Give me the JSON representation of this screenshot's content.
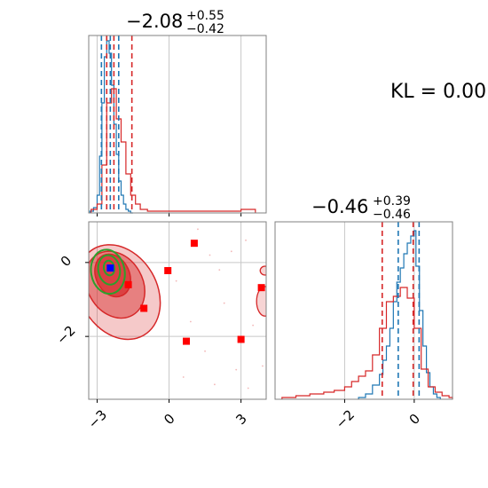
{
  "kl_label": "KL = 0.00",
  "colors": {
    "red": "#d62728",
    "blue": "#1f77b4",
    "green": "#2ca02c",
    "marker_red": "#ff0000",
    "marker_blue": "#0000ff",
    "grid": "#c8c8c8",
    "frame": "#808080"
  },
  "chart_data": [
    {
      "type": "histogram",
      "panel": "top-left",
      "title": {
        "value": "−2.08",
        "upper": "+0.55",
        "lower": "−0.42"
      },
      "xlim": [
        -3.35,
        4.05
      ],
      "grid": true,
      "vlines": {
        "red": [
          -2.6,
          -2.3,
          -1.55
        ],
        "blue": [
          -2.82,
          -2.45,
          -2.1
        ]
      },
      "series": [
        {
          "color": "blue",
          "bins": [
            [
              -3.3,
              0.01
            ],
            [
              -3.15,
              0.03
            ],
            [
              -3.0,
              0.1
            ],
            [
              -2.9,
              0.32
            ],
            [
              -2.8,
              0.62
            ],
            [
              -2.7,
              0.88
            ],
            [
              -2.6,
              0.97
            ],
            [
              -2.5,
              0.9
            ],
            [
              -2.4,
              0.72
            ],
            [
              -2.3,
              0.5
            ],
            [
              -2.2,
              0.33
            ],
            [
              -2.1,
              0.18
            ],
            [
              -2.0,
              0.1
            ],
            [
              -1.9,
              0.05
            ],
            [
              -1.8,
              0.02
            ],
            [
              -1.7,
              0.01
            ],
            [
              -1.6,
              0.0
            ]
          ]
        },
        {
          "color": "red",
          "bins": [
            [
              -3.25,
              0.02
            ],
            [
              -3.0,
              0.05
            ],
            [
              -2.8,
              0.27
            ],
            [
              -2.6,
              0.62
            ],
            [
              -2.4,
              0.7
            ],
            [
              -2.2,
              0.53
            ],
            [
              -2.0,
              0.4
            ],
            [
              -1.8,
              0.22
            ],
            [
              -1.6,
              0.1
            ],
            [
              -1.4,
              0.05
            ],
            [
              -1.2,
              0.02
            ],
            [
              -0.9,
              0.01
            ],
            [
              -0.3,
              0.01
            ],
            [
              0.5,
              0.01
            ],
            [
              1.5,
              0.01
            ],
            [
              2.5,
              0.01
            ],
            [
              3.0,
              0.02
            ],
            [
              3.5,
              0.02
            ]
          ]
        }
      ],
      "xticks": [
        -3,
        0,
        3
      ]
    },
    {
      "type": "scatter_contour",
      "panel": "bottom-left",
      "xlim": [
        -3.35,
        4.05
      ],
      "ylim": [
        -3.7,
        1.1
      ],
      "grid": true,
      "xticks": [
        -3,
        0,
        3
      ],
      "yticks": [
        0,
        -2
      ],
      "xtick_labels": [
        "−3",
        "0",
        "3"
      ],
      "ytick_labels": [
        "0",
        "−2"
      ],
      "square_markers_red": [
        [
          1.05,
          0.52
        ],
        [
          -0.05,
          -0.22
        ],
        [
          -1.05,
          -1.24
        ],
        [
          0.72,
          -2.13
        ],
        [
          3.0,
          -2.08
        ],
        [
          3.85,
          -0.68
        ],
        [
          -1.7,
          -0.6
        ]
      ],
      "square_markers_blue": [
        [
          -2.45,
          -0.15
        ]
      ],
      "red_contours": [
        {
          "center": [
            -2.1,
            -0.8
          ],
          "rx": 1.6,
          "ry": 1.35,
          "rotate": -30,
          "alpha": 0.25
        },
        {
          "center": [
            -2.25,
            -0.6
          ],
          "rx": 1.15,
          "ry": 0.95,
          "rotate": -30,
          "alpha": 0.45
        },
        {
          "center": [
            -2.35,
            -0.35
          ],
          "rx": 0.7,
          "ry": 0.6,
          "rotate": -25,
          "alpha": 0.7
        }
      ],
      "green_contours": [
        {
          "center": [
            -2.55,
            -0.25
          ],
          "rx": 0.7,
          "ry": 0.6,
          "rotate": -10
        },
        {
          "center": [
            -2.5,
            -0.2
          ],
          "rx": 0.45,
          "ry": 0.4,
          "rotate": -10
        },
        {
          "center": [
            -2.5,
            -0.15
          ],
          "rx": 0.22,
          "ry": 0.2,
          "rotate": -10
        }
      ],
      "red_islands": [
        {
          "center": [
            4.0,
            -0.22
          ],
          "rx": 0.2,
          "ry": 0.12
        },
        {
          "center": [
            4.0,
            -1.05
          ],
          "rx": 0.35,
          "ry": 0.4
        }
      ]
    },
    {
      "type": "histogram",
      "panel": "bottom-right",
      "title": {
        "value": "−0.46",
        "upper": "+0.39",
        "lower": "−0.46"
      },
      "xlim": [
        -4.0,
        1.1
      ],
      "grid": true,
      "xticks": [
        -2,
        0
      ],
      "xtick_labels": [
        "−2",
        "0"
      ],
      "vlines": {
        "red": [
          -0.92,
          -0.03
        ],
        "blue": [
          -0.46,
          0.14
        ]
      },
      "series": [
        {
          "color": "blue",
          "bins": [
            [
              -1.6,
              0.01
            ],
            [
              -1.4,
              0.03
            ],
            [
              -1.2,
              0.08
            ],
            [
              -1.0,
              0.14
            ],
            [
              -0.9,
              0.22
            ],
            [
              -0.8,
              0.3
            ],
            [
              -0.7,
              0.4
            ],
            [
              -0.6,
              0.55
            ],
            [
              -0.5,
              0.66
            ],
            [
              -0.4,
              0.74
            ],
            [
              -0.3,
              0.82
            ],
            [
              -0.2,
              0.88
            ],
            [
              -0.1,
              0.92
            ],
            [
              0.0,
              0.95
            ],
            [
              0.05,
              0.75
            ],
            [
              0.15,
              0.5
            ],
            [
              0.25,
              0.3
            ],
            [
              0.35,
              0.15
            ],
            [
              0.45,
              0.07
            ],
            [
              0.55,
              0.03
            ],
            [
              0.65,
              0.01
            ]
          ]
        },
        {
          "color": "red",
          "bins": [
            [
              -3.8,
              0.01
            ],
            [
              -3.4,
              0.02
            ],
            [
              -3.0,
              0.03
            ],
            [
              -2.6,
              0.04
            ],
            [
              -2.3,
              0.05
            ],
            [
              -2.0,
              0.07
            ],
            [
              -1.8,
              0.1
            ],
            [
              -1.6,
              0.13
            ],
            [
              -1.4,
              0.16
            ],
            [
              -1.2,
              0.25
            ],
            [
              -1.0,
              0.4
            ],
            [
              -0.8,
              0.55
            ],
            [
              -0.6,
              0.58
            ],
            [
              -0.4,
              0.63
            ],
            [
              -0.2,
              0.57
            ],
            [
              0.0,
              0.4
            ],
            [
              0.2,
              0.17
            ],
            [
              0.4,
              0.07
            ],
            [
              0.6,
              0.04
            ],
            [
              0.8,
              0.02
            ],
            [
              1.0,
              0.01
            ]
          ]
        }
      ]
    }
  ]
}
